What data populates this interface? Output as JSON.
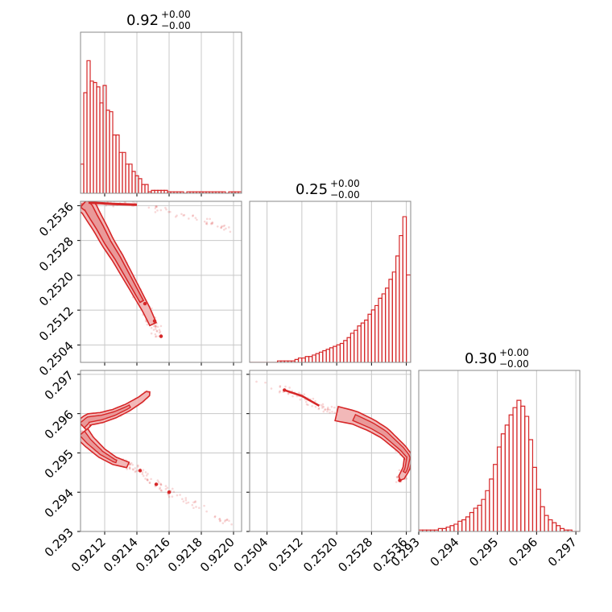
{
  "colors": {
    "accent": "#d62728",
    "fill": "#f2b8b8",
    "grid": "#c8c8c8",
    "frame": "#888888"
  },
  "chart_data": [
    {
      "type": "histogram",
      "panel": "diag-0",
      "title": "0.92",
      "title_sup": "+0.00",
      "title_sub": "−0.00",
      "xlim": [
        0.92105,
        0.92205
      ],
      "x_ticks": [
        0.9212,
        0.9214,
        0.9216,
        0.9218,
        0.922
      ],
      "grid": true,
      "bin_edges": [
        0.92105,
        0.92107,
        0.92109,
        0.92111,
        0.92113,
        0.92115,
        0.92117,
        0.92119,
        0.92121,
        0.92123,
        0.92125,
        0.92127,
        0.92129,
        0.92131,
        0.92133,
        0.92135,
        0.92137,
        0.92139,
        0.92141,
        0.92143,
        0.92145,
        0.92147,
        0.92149,
        0.92151,
        0.92153,
        0.92155,
        0.92157,
        0.92159,
        0.92161,
        0.92163,
        0.92165,
        0.92167,
        0.92169,
        0.92171,
        0.92173,
        0.92175,
        0.92177,
        0.92179,
        0.92181,
        0.92183,
        0.92185,
        0.92187,
        0.92189,
        0.92191,
        0.92193,
        0.92195,
        0.92197,
        0.92199,
        0.92201,
        0.92203,
        0.92205
      ],
      "counts": [
        0.2,
        0.69,
        0.91,
        0.77,
        0.76,
        0.73,
        0.62,
        0.74,
        0.57,
        0.56,
        0.4,
        0.4,
        0.28,
        0.28,
        0.2,
        0.2,
        0.15,
        0.12,
        0.1,
        0.06,
        0.06,
        0.01,
        0.02,
        0.02,
        0.02,
        0.02,
        0.02,
        0.01,
        0.01,
        0.01,
        0.01,
        0.01,
        0.0,
        0.01,
        0.01,
        0.01,
        0.01,
        0.01,
        0.01,
        0.01,
        0.01,
        0.01,
        0.01,
        0.01,
        0.01,
        0.0,
        0.01,
        0.01,
        0.01,
        0.01
      ]
    },
    {
      "type": "histogram",
      "panel": "diag-1",
      "title": "0.25",
      "title_sup": "+0.00",
      "title_sub": "−0.00",
      "xlim": [
        0.25,
        0.2537
      ],
      "x_ticks": [
        0.2504,
        0.2512,
        0.252,
        0.2528,
        0.2536
      ],
      "x_tick_labels": [
        "0.2504",
        "0.2512",
        "0.2520",
        "0.2528",
        "0.2536"
      ],
      "grid": true,
      "bin_edges": [
        0.25,
        0.25008,
        0.25016,
        0.25024,
        0.25032,
        0.2504,
        0.25048,
        0.25056,
        0.25064,
        0.25072,
        0.2508,
        0.25088,
        0.25096,
        0.25104,
        0.25112,
        0.2512,
        0.25128,
        0.25136,
        0.25144,
        0.25152,
        0.2516,
        0.25168,
        0.25176,
        0.25184,
        0.25192,
        0.252,
        0.25208,
        0.25216,
        0.25224,
        0.25232,
        0.2524,
        0.25248,
        0.25256,
        0.25264,
        0.25272,
        0.2528,
        0.25288,
        0.25296,
        0.25304,
        0.25312,
        0.2532,
        0.25328,
        0.25336,
        0.25344,
        0.25352,
        0.2536,
        0.2537
      ],
      "counts": [
        0.0,
        0.0,
        0.0,
        0.0,
        0.0,
        0.0,
        0.0,
        0.0,
        0.01,
        0.01,
        0.01,
        0.01,
        0.01,
        0.02,
        0.03,
        0.03,
        0.04,
        0.04,
        0.05,
        0.06,
        0.07,
        0.08,
        0.09,
        0.1,
        0.11,
        0.12,
        0.13,
        0.15,
        0.17,
        0.2,
        0.22,
        0.25,
        0.27,
        0.29,
        0.33,
        0.36,
        0.39,
        0.44,
        0.47,
        0.51,
        0.57,
        0.62,
        0.73,
        0.87,
        1.0,
        0.6
      ]
    },
    {
      "type": "histogram",
      "panel": "diag-2",
      "title": "0.30",
      "title_sup": "+0.00",
      "title_sub": "−0.00",
      "xlim": [
        0.293,
        0.2971
      ],
      "x_ticks": [
        0.293,
        0.294,
        0.295,
        0.296,
        0.297
      ],
      "x_tick_labels": [
        "0.293",
        "0.294",
        "0.295",
        "0.296",
        "0.297"
      ],
      "grid": true,
      "bin_edges": [
        0.293,
        0.2931,
        0.2932,
        0.2933,
        0.2934,
        0.2935,
        0.2936,
        0.2937,
        0.2938,
        0.2939,
        0.294,
        0.2941,
        0.2942,
        0.2943,
        0.2944,
        0.2945,
        0.2946,
        0.2947,
        0.2948,
        0.2949,
        0.295,
        0.2951,
        0.2952,
        0.2953,
        0.2954,
        0.2955,
        0.2956,
        0.2957,
        0.2958,
        0.2959,
        0.296,
        0.2961,
        0.2962,
        0.2963,
        0.2964,
        0.2965,
        0.2966,
        0.2967,
        0.2968,
        0.2969,
        0.297,
        0.2971
      ],
      "counts": [
        0.01,
        0.01,
        0.01,
        0.01,
        0.01,
        0.02,
        0.02,
        0.03,
        0.04,
        0.05,
        0.07,
        0.08,
        0.1,
        0.13,
        0.16,
        0.18,
        0.22,
        0.28,
        0.36,
        0.46,
        0.58,
        0.67,
        0.73,
        0.8,
        0.85,
        0.9,
        0.86,
        0.79,
        0.63,
        0.44,
        0.29,
        0.17,
        0.11,
        0.08,
        0.06,
        0.04,
        0.02,
        0.01,
        0.01,
        0.0,
        0.0
      ]
    },
    {
      "type": "scatter-contour",
      "panel": "corr-1-0",
      "xlim": [
        0.92105,
        0.92205
      ],
      "ylim": [
        0.25,
        0.2537
      ],
      "x_ticks": [
        0.9212,
        0.9214,
        0.9216,
        0.9218,
        0.922
      ],
      "y_ticks": [
        0.2504,
        0.2512,
        0.252,
        0.2528,
        0.2536
      ],
      "y_tick_labels": [
        "0.2504",
        "0.2512",
        "0.2520",
        "0.2528",
        "0.2536"
      ],
      "grid": true,
      "curve": [
        [
          0.92107,
          0.25365
        ],
        [
          0.9211,
          0.25355
        ],
        [
          0.92113,
          0.25335
        ],
        [
          0.92117,
          0.2531
        ],
        [
          0.92122,
          0.25275
        ],
        [
          0.92128,
          0.2524
        ],
        [
          0.92134,
          0.252
        ],
        [
          0.9214,
          0.2516
        ],
        [
          0.92146,
          0.2512
        ],
        [
          0.92151,
          0.2508
        ],
        [
          0.92155,
          0.25055
        ]
      ],
      "upper_branch": [
        [
          0.9211,
          0.25367
        ],
        [
          0.92125,
          0.25364
        ],
        [
          0.9214,
          0.25362
        ],
        [
          0.9216,
          0.25345
        ],
        [
          0.9218,
          0.2533
        ],
        [
          0.922,
          0.253
        ]
      ]
    },
    {
      "type": "scatter-contour",
      "panel": "corr-2-0",
      "xlim": [
        0.92105,
        0.92205
      ],
      "ylim": [
        0.293,
        0.2971
      ],
      "x_ticks": [
        0.9212,
        0.9214,
        0.9216,
        0.9218,
        0.922
      ],
      "x_tick_labels": [
        "0.9212",
        "0.9214",
        "0.9216",
        "0.9218",
        "0.9220"
      ],
      "y_ticks": [
        0.293,
        0.294,
        0.295,
        0.296,
        0.297
      ],
      "y_tick_labels": [
        "0.293",
        "0.294",
        "0.295",
        "0.296",
        "0.297"
      ],
      "grid": true,
      "upper": [
        [
          0.92106,
          0.2957
        ],
        [
          0.9211,
          0.29585
        ],
        [
          0.92118,
          0.2959
        ],
        [
          0.92126,
          0.296
        ],
        [
          0.92134,
          0.29615
        ],
        [
          0.92142,
          0.29635
        ],
        [
          0.92148,
          0.29655
        ]
      ],
      "lower": [
        [
          0.92106,
          0.2955
        ],
        [
          0.9211,
          0.2953
        ],
        [
          0.92118,
          0.295
        ],
        [
          0.92126,
          0.2948
        ],
        [
          0.92134,
          0.2947
        ],
        [
          0.92142,
          0.29455
        ],
        [
          0.92152,
          0.2942
        ],
        [
          0.92165,
          0.2939
        ],
        [
          0.92185,
          0.2935
        ],
        [
          0.922,
          0.2931
        ]
      ]
    },
    {
      "type": "scatter-contour",
      "panel": "corr-2-1",
      "xlim": [
        0.25,
        0.2537
      ],
      "ylim": [
        0.293,
        0.2971
      ],
      "x_ticks": [
        0.2504,
        0.2512,
        0.252,
        0.2528,
        0.2536
      ],
      "x_tick_labels": [
        "0.2504",
        "0.2512",
        "0.2520",
        "0.2528",
        "0.2536"
      ],
      "y_ticks": [
        0.293,
        0.294,
        0.295,
        0.296,
        0.297
      ],
      "grid": true,
      "curve": [
        [
          0.25005,
          0.2969
        ],
        [
          0.2504,
          0.2967
        ],
        [
          0.2508,
          0.2966
        ],
        [
          0.2512,
          0.29645
        ],
        [
          0.2516,
          0.2962
        ],
        [
          0.252,
          0.296
        ],
        [
          0.2524,
          0.2959
        ],
        [
          0.2528,
          0.2957
        ],
        [
          0.2531,
          0.2955
        ],
        [
          0.2533,
          0.2953
        ],
        [
          0.2535,
          0.2951
        ],
        [
          0.25365,
          0.2949
        ],
        [
          0.2536,
          0.2946
        ],
        [
          0.25345,
          0.2943
        ]
      ]
    }
  ]
}
